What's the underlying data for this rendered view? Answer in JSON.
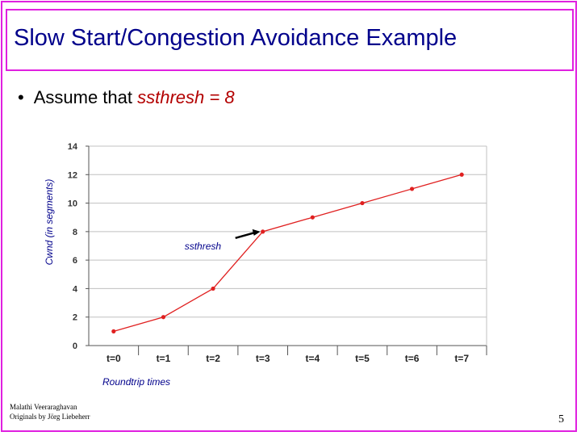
{
  "slide": {
    "title": "Slow Start/Congestion Avoidance Example",
    "bullet_prefix": "Assume that",
    "bullet_highlight": "ssthresh = 8",
    "footer_line1": "Malathi Veeraraghavan",
    "footer_line2": "Originals by Jörg Liebeherr",
    "page_number": "5",
    "colors": {
      "border": "#e020e0",
      "title": "#00008b",
      "highlight": "#b30000",
      "series": "#e02020"
    }
  },
  "chart_data": {
    "type": "line",
    "categories": [
      "t=0",
      "t=1",
      "t=2",
      "t=3",
      "t=4",
      "t=5",
      "t=6",
      "t=7"
    ],
    "series": [
      {
        "values": [
          1,
          2,
          4,
          8,
          9,
          10,
          11,
          12
        ]
      }
    ],
    "ylabel": "Cwnd (in segments)",
    "xlabel": "Roundtrip times",
    "ylim": [
      0,
      14
    ],
    "yticks": [
      "0",
      "2",
      "4",
      "6",
      "8",
      "10",
      "12",
      "14"
    ],
    "grid": "horizontal",
    "annotation": {
      "text": "ssthresh",
      "points_to_category": "t=3"
    }
  }
}
